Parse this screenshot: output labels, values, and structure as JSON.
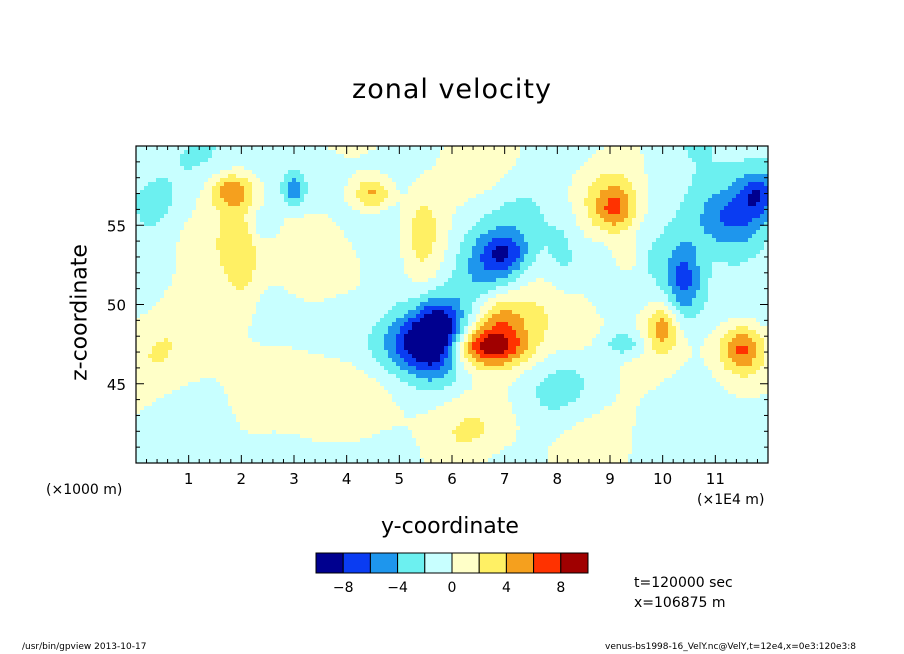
{
  "chart_data": {
    "type": "heatmap",
    "title": "zonal velocity",
    "xlabel": "y-coordinate",
    "ylabel": "z-coordinate",
    "x_unit_left": "(×1000 m)",
    "x_unit_right": "(×1E4 m)",
    "xlim": [
      0,
      12
    ],
    "ylim": [
      40,
      60
    ],
    "x_ticks": [
      1,
      2,
      3,
      4,
      5,
      6,
      7,
      8,
      9,
      10,
      11
    ],
    "x_tick_labels": [
      "1",
      "2",
      "3",
      "4",
      "5",
      "6",
      "7",
      "8",
      "9",
      "10",
      "11"
    ],
    "y_ticks": [
      45,
      50,
      55
    ],
    "y_tick_labels": [
      "45",
      "50",
      "55"
    ],
    "colorbar": {
      "levels": [
        -10,
        -8,
        -6,
        -4,
        -2,
        0,
        2,
        4,
        6,
        8,
        10
      ],
      "tick_values": [
        -8,
        -4,
        0,
        4,
        8
      ],
      "tick_labels": [
        "−8",
        "−4",
        "0",
        "4",
        "8"
      ],
      "colors": [
        "#00008f",
        "#0a3cf2",
        "#1e96ed",
        "#6cf0f0",
        "#c8ffff",
        "#ffffc8",
        "#fff064",
        "#f5a01e",
        "#ff3200",
        "#a00000"
      ]
    },
    "blobs": [
      {
        "x": 5.7,
        "y": 48.2,
        "amp": -9.5,
        "sx": 0.35,
        "sy": 1.6
      },
      {
        "x": 5.2,
        "y": 47.5,
        "amp": -5,
        "sx": 0.5,
        "sy": 1.2
      },
      {
        "x": 6.6,
        "y": 47.3,
        "amp": 9,
        "sx": 0.55,
        "sy": 0.9
      },
      {
        "x": 6.9,
        "y": 49.2,
        "amp": 4.5,
        "sx": 0.35,
        "sy": 1.2
      },
      {
        "x": 7.0,
        "y": 53.2,
        "amp": -4.5,
        "sx": 0.3,
        "sy": 0.9
      },
      {
        "x": 6.6,
        "y": 52.0,
        "amp": -3,
        "sx": 0.5,
        "sy": 1.8
      },
      {
        "x": 4.5,
        "y": 57.0,
        "amp": 6,
        "sx": 0.28,
        "sy": 0.8
      },
      {
        "x": 5.4,
        "y": 55.2,
        "amp": 3.5,
        "sx": 0.3,
        "sy": 2.0
      },
      {
        "x": 1.8,
        "y": 57.2,
        "amp": 5.5,
        "sx": 0.3,
        "sy": 0.8
      },
      {
        "x": 2.0,
        "y": 52.5,
        "amp": 3,
        "sx": 0.25,
        "sy": 2.5
      },
      {
        "x": 3.0,
        "y": 57.2,
        "amp": -5,
        "sx": 0.15,
        "sy": 0.7
      },
      {
        "x": 9.1,
        "y": 56.0,
        "amp": 6,
        "sx": 0.3,
        "sy": 1.1
      },
      {
        "x": 9.3,
        "y": 53.0,
        "amp": 4,
        "sx": 0.2,
        "sy": 0.9
      },
      {
        "x": 11.3,
        "y": 55.5,
        "amp": -7,
        "sx": 0.55,
        "sy": 1.6
      },
      {
        "x": 10.4,
        "y": 51.5,
        "amp": -6,
        "sx": 0.25,
        "sy": 1.8
      },
      {
        "x": 11.8,
        "y": 57.0,
        "amp": -5,
        "sx": 0.25,
        "sy": 1.0
      },
      {
        "x": 11.5,
        "y": 47.2,
        "amp": 6.5,
        "sx": 0.3,
        "sy": 1.1
      },
      {
        "x": 10.0,
        "y": 48.5,
        "amp": 4.5,
        "sx": 0.2,
        "sy": 1.0
      },
      {
        "x": 9.3,
        "y": 47.5,
        "amp": -3.5,
        "sx": 0.3,
        "sy": 0.6
      },
      {
        "x": 8.4,
        "y": 48.5,
        "amp": 2.5,
        "sx": 0.4,
        "sy": 1.5
      },
      {
        "x": 1.2,
        "y": 50.0,
        "amp": 1.2,
        "sx": 1.2,
        "sy": 4.0
      },
      {
        "x": 3.5,
        "y": 51.0,
        "amp": 1.0,
        "sx": 0.6,
        "sy": 5.0
      },
      {
        "x": 8.1,
        "y": 53.0,
        "amp": -2.5,
        "sx": 0.25,
        "sy": 2.0
      },
      {
        "x": 0.2,
        "y": 56.5,
        "amp": -3,
        "sx": 0.35,
        "sy": 1.2
      },
      {
        "x": 4.0,
        "y": 43.0,
        "amp": 1.0,
        "sx": 1.5,
        "sy": 1.5
      },
      {
        "x": 7.5,
        "y": 42.0,
        "amp": 1.0,
        "sx": 1.0,
        "sy": 1.2
      },
      {
        "x": 10.5,
        "y": 43.0,
        "amp": 1.0,
        "sx": 0.8,
        "sy": 1.5
      },
      {
        "x": 1.0,
        "y": 41.0,
        "amp": 1.0,
        "sx": 0.8,
        "sy": 1.0
      },
      {
        "x": 4.9,
        "y": 51.5,
        "amp": -2.2,
        "sx": 0.3,
        "sy": 2.0
      },
      {
        "x": 2.4,
        "y": 55.0,
        "amp": -2.5,
        "sx": 0.2,
        "sy": 0.8
      }
    ]
  },
  "info": {
    "time": "t=120000 sec",
    "xpos": "x=106875 m"
  },
  "footer": {
    "left": "/usr/bin/gpview   2013-10-17",
    "right": "venus-bs1998-16_VelY.nc@VelY,t=12e4,x=0e3:120e3:8"
  }
}
